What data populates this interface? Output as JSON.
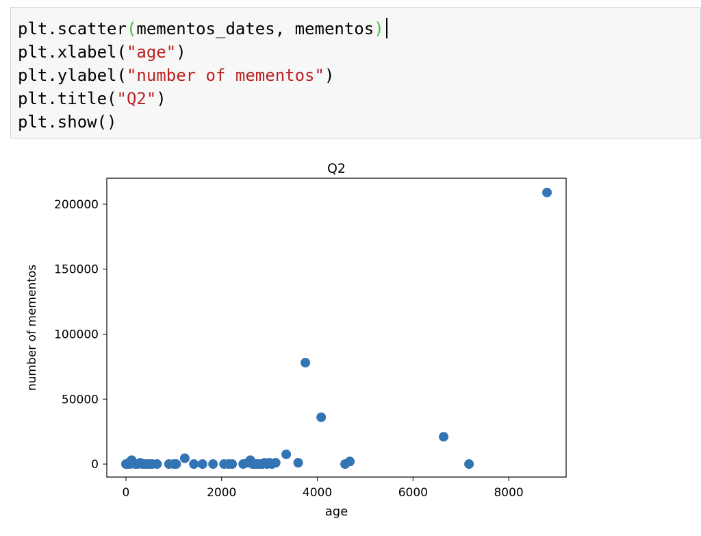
{
  "code": {
    "lines": [
      {
        "parts": [
          {
            "t": "plt.scatter",
            "c": "plain"
          },
          {
            "t": "(",
            "c": "paren-hl"
          },
          {
            "t": "mementos_dates, mementos",
            "c": "plain"
          },
          {
            "t": ")",
            "c": "paren-hl"
          }
        ],
        "cursor": true
      },
      {
        "parts": [
          {
            "t": "plt.xlabel(",
            "c": "plain"
          },
          {
            "t": "\"age\"",
            "c": "str"
          },
          {
            "t": ")",
            "c": "plain"
          }
        ]
      },
      {
        "parts": [
          {
            "t": "plt.ylabel(",
            "c": "plain"
          },
          {
            "t": "\"number of mementos\"",
            "c": "str"
          },
          {
            "t": ")",
            "c": "plain"
          }
        ]
      },
      {
        "parts": [
          {
            "t": "plt.title(",
            "c": "plain"
          },
          {
            "t": "\"Q2\"",
            "c": "str"
          },
          {
            "t": ")",
            "c": "plain"
          }
        ]
      },
      {
        "parts": [
          {
            "t": "plt.show()",
            "c": "plain"
          }
        ]
      }
    ]
  },
  "chart_data": {
    "type": "scatter",
    "title": "Q2",
    "xlabel": "age",
    "ylabel": "number of mementos",
    "xlim": [
      -400,
      9200
    ],
    "ylim": [
      -10000,
      220000
    ],
    "xticks": [
      0,
      2000,
      4000,
      6000,
      8000
    ],
    "yticks": [
      0,
      50000,
      100000,
      150000,
      200000
    ],
    "grid": false,
    "marker_color": "#3274b4",
    "x": [
      0,
      30,
      60,
      90,
      120,
      150,
      200,
      250,
      300,
      350,
      400,
      450,
      500,
      550,
      650,
      900,
      1000,
      1050,
      1230,
      1420,
      1600,
      1820,
      2050,
      2150,
      2220,
      2450,
      2550,
      2600,
      2650,
      2700,
      2750,
      2800,
      2850,
      2900,
      2950,
      3000,
      3050,
      3130,
      3350,
      3600,
      3750,
      4080,
      4580,
      4680,
      6640,
      7170,
      8800
    ],
    "y": [
      0,
      0,
      1000,
      0,
      3000,
      500,
      0,
      0,
      1000,
      0,
      0,
      0,
      0,
      0,
      0,
      0,
      0,
      0,
      4500,
      0,
      0,
      0,
      0,
      0,
      0,
      0,
      1000,
      3000,
      0,
      0,
      0,
      0,
      0,
      1000,
      0,
      1000,
      0,
      1000,
      7500,
      1000,
      78000,
      36000,
      0,
      2000,
      21000,
      0,
      209000
    ]
  }
}
